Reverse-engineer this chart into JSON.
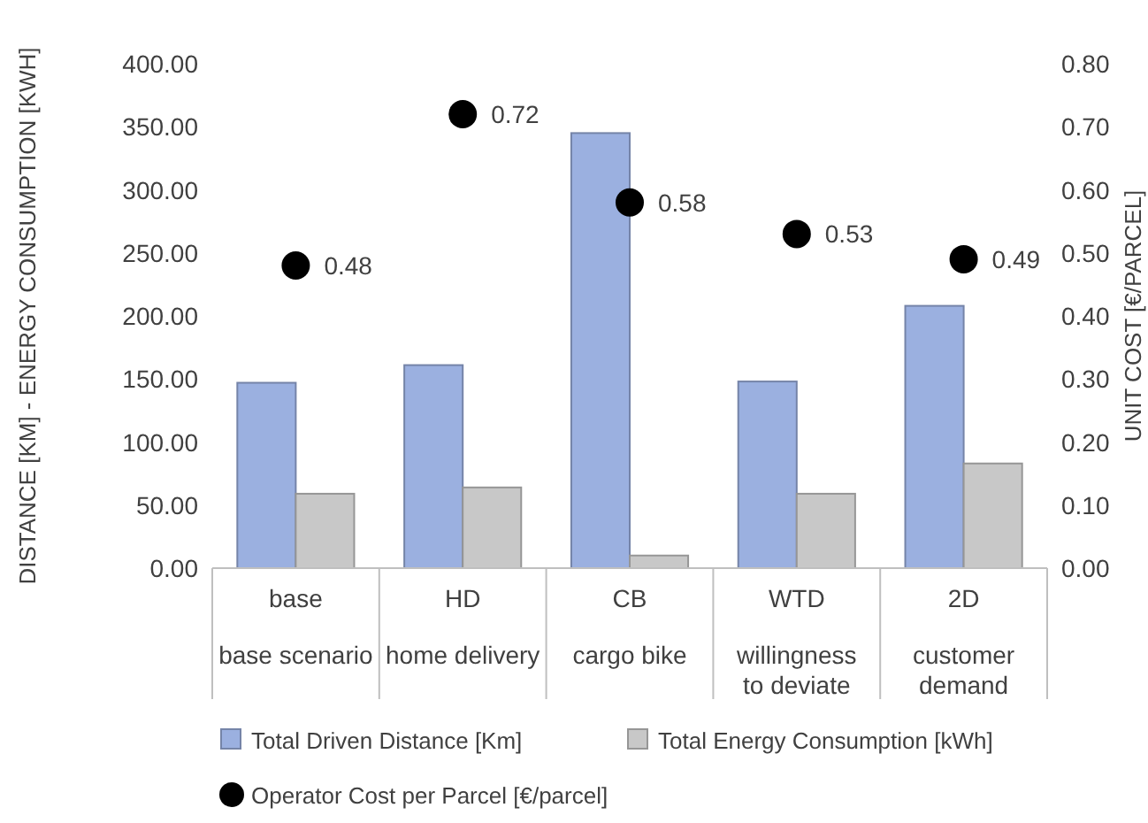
{
  "chart_data": {
    "type": "bar",
    "ylabel": "DISTANCE [KM] - ENERGY CONSUMPTION [KWH]",
    "y2label": "UNIT COST [€/PARCEL]",
    "categories": [
      "base\nbase scenario",
      "HD\nhome delivery",
      "CB\ncargo bike",
      "WTD\nwillingness to deviate",
      "2D\ncustomer demand"
    ],
    "series": [
      {
        "name": "Total Driven Distance [Km]",
        "color": "#9bb0e0",
        "values": [
          147,
          161,
          345,
          148,
          208
        ]
      },
      {
        "name": "Total Energy Consumption [kWh]",
        "color": "#c8c8c8",
        "values": [
          59,
          64,
          10,
          59,
          83
        ]
      },
      {
        "name": "Operator Cost per Parcel [€/parcel]",
        "type": "scatter",
        "axis": "y2",
        "color": "#000000",
        "values": [
          0.48,
          0.72,
          0.58,
          0.53,
          0.49
        ],
        "value_labels": [
          "0.48",
          "0.72",
          "0.58",
          "0.53",
          "0.49"
        ]
      }
    ],
    "ylim": [
      0,
      400
    ],
    "yticks": [
      {
        "value": 0,
        "label": "0.00"
      },
      {
        "value": 50,
        "label": "50.00"
      },
      {
        "value": 100,
        "label": "100.00"
      },
      {
        "value": 150,
        "label": "150.00"
      },
      {
        "value": 200,
        "label": "200.00"
      },
      {
        "value": 250,
        "label": "250.00"
      },
      {
        "value": 300,
        "label": "300.00"
      },
      {
        "value": 350,
        "label": "350.00"
      },
      {
        "value": 400,
        "label": "400.00"
      }
    ],
    "y2lim": [
      0,
      0.8
    ],
    "y2ticks": [
      {
        "value": 0,
        "label": "0.00"
      },
      {
        "value": 0.1,
        "label": "0.10"
      },
      {
        "value": 0.2,
        "label": "0.20"
      },
      {
        "value": 0.3,
        "label": "0.30"
      },
      {
        "value": 0.4,
        "label": "0.40"
      },
      {
        "value": 0.5,
        "label": "0.50"
      },
      {
        "value": 0.6,
        "label": "0.60"
      },
      {
        "value": 0.7,
        "label": "0.70"
      },
      {
        "value": 0.8,
        "label": "0.80"
      }
    ],
    "legend": "bottom",
    "marker": "circle"
  }
}
